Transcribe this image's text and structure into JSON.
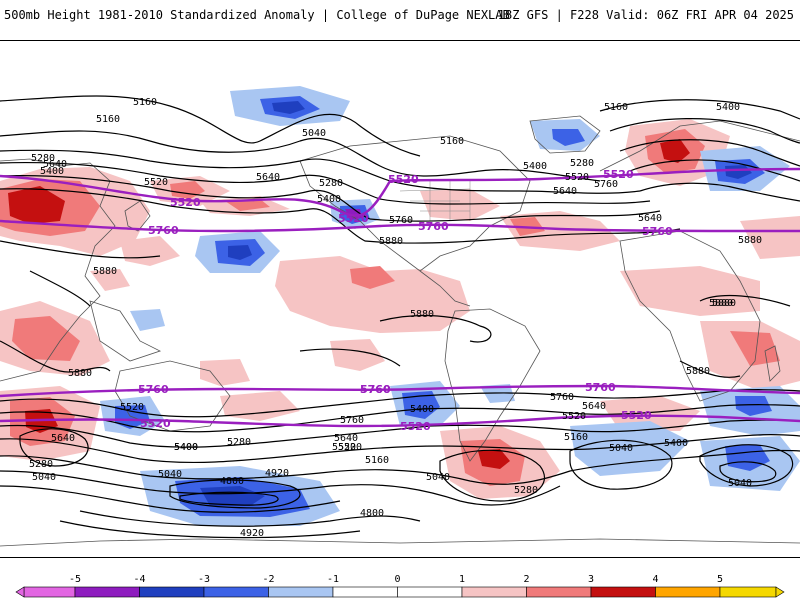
{
  "header": {
    "left_title": "500mb Height 1981-2010 Standardized Anomaly | College of DuPage NEXLAB",
    "right_title": "18Z GFS | F228 Valid: 06Z FRI APR 04 2025"
  },
  "colorbar": {
    "ticks": [
      "-5",
      "-4",
      "-3",
      "-2",
      "-1",
      "0",
      "1",
      "2",
      "3",
      "4",
      "5"
    ],
    "colors": [
      "#e266e2",
      "#8e1cbf",
      "#1f3fbf",
      "#3c62e6",
      "#a9c6f2",
      "#ffffff",
      "#ffffff",
      "#f6c4c4",
      "#f07a7a",
      "#c41010",
      "#ffa500",
      "#f5d800"
    ]
  },
  "contours": {
    "black_labels": [
      "5160",
      "5160",
      "5040",
      "5160",
      "5160",
      "5400",
      "5280",
      "5520",
      "5640",
      "5400",
      "5640",
      "5280",
      "5400",
      "5760",
      "5400",
      "5280",
      "5760",
      "5520",
      "5640",
      "5640",
      "5880",
      "5880",
      "5880",
      "5880",
      "5880",
      "5880",
      "5880",
      "5880",
      "5760",
      "5640",
      "5520",
      "5400",
      "5280",
      "5040",
      "4920",
      "4800",
      "4800",
      "4920",
      "5160",
      "5040",
      "5280",
      "5040",
      "5160",
      "5520",
      "5400",
      "5040",
      "5640",
      "5520",
      "5400",
      "5280",
      "5040",
      "5760",
      "5400",
      "5640",
      "5520"
    ],
    "purple_labels": [
      "5520",
      "5520",
      "5760",
      "5760",
      "5520",
      "5760",
      "5760",
      "5520",
      "5760",
      "5760",
      "5520",
      "5520",
      "5760",
      "5520"
    ]
  },
  "colors": {
    "purple_contour": "#9a1fbf",
    "black_contour": "#000000",
    "coast": "#555555"
  }
}
